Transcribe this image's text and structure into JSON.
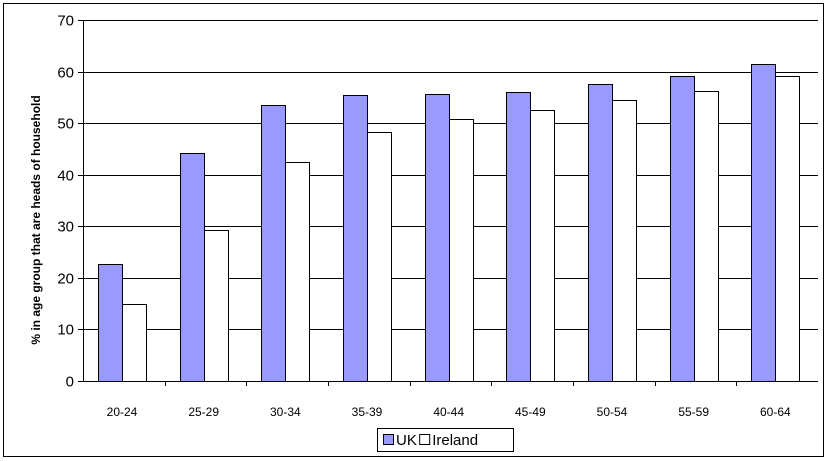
{
  "chart_data": {
    "type": "bar",
    "title": "",
    "xlabel": "",
    "ylabel": "% in age group that are heads of household",
    "categories": [
      "20-24",
      "25-29",
      "30-34",
      "35-39",
      "40-44",
      "45-49",
      "50-54",
      "55-59",
      "60-64"
    ],
    "series": [
      {
        "name": "UK",
        "color": "#9999ff",
        "values": [
          22.6,
          44.3,
          53.6,
          55.4,
          55.7,
          56.1,
          57.5,
          59.2,
          61.4
        ]
      },
      {
        "name": "Ireland",
        "color": "#ffffff",
        "values": [
          15.0,
          29.3,
          42.5,
          48.2,
          50.9,
          52.5,
          54.4,
          56.2,
          59.1
        ]
      }
    ],
    "ylim": [
      0,
      70
    ],
    "yticks": [
      0,
      10,
      20,
      30,
      40,
      50,
      60,
      70
    ],
    "grid": true,
    "legend": "bottom-center"
  }
}
